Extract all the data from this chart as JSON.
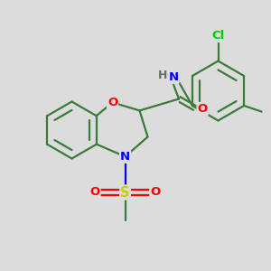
{
  "background_color": "#dcdcdc",
  "atom_colors": {
    "C": "#3a7a3a",
    "N": "#0000ff",
    "O": "#ff0000",
    "S": "#cccc00",
    "Cl": "#00cc00",
    "H": "#607060"
  },
  "bond_color": "#3a7a3a",
  "bond_width": 1.6,
  "figsize": [
    3.0,
    3.0
  ],
  "dpi": 100
}
